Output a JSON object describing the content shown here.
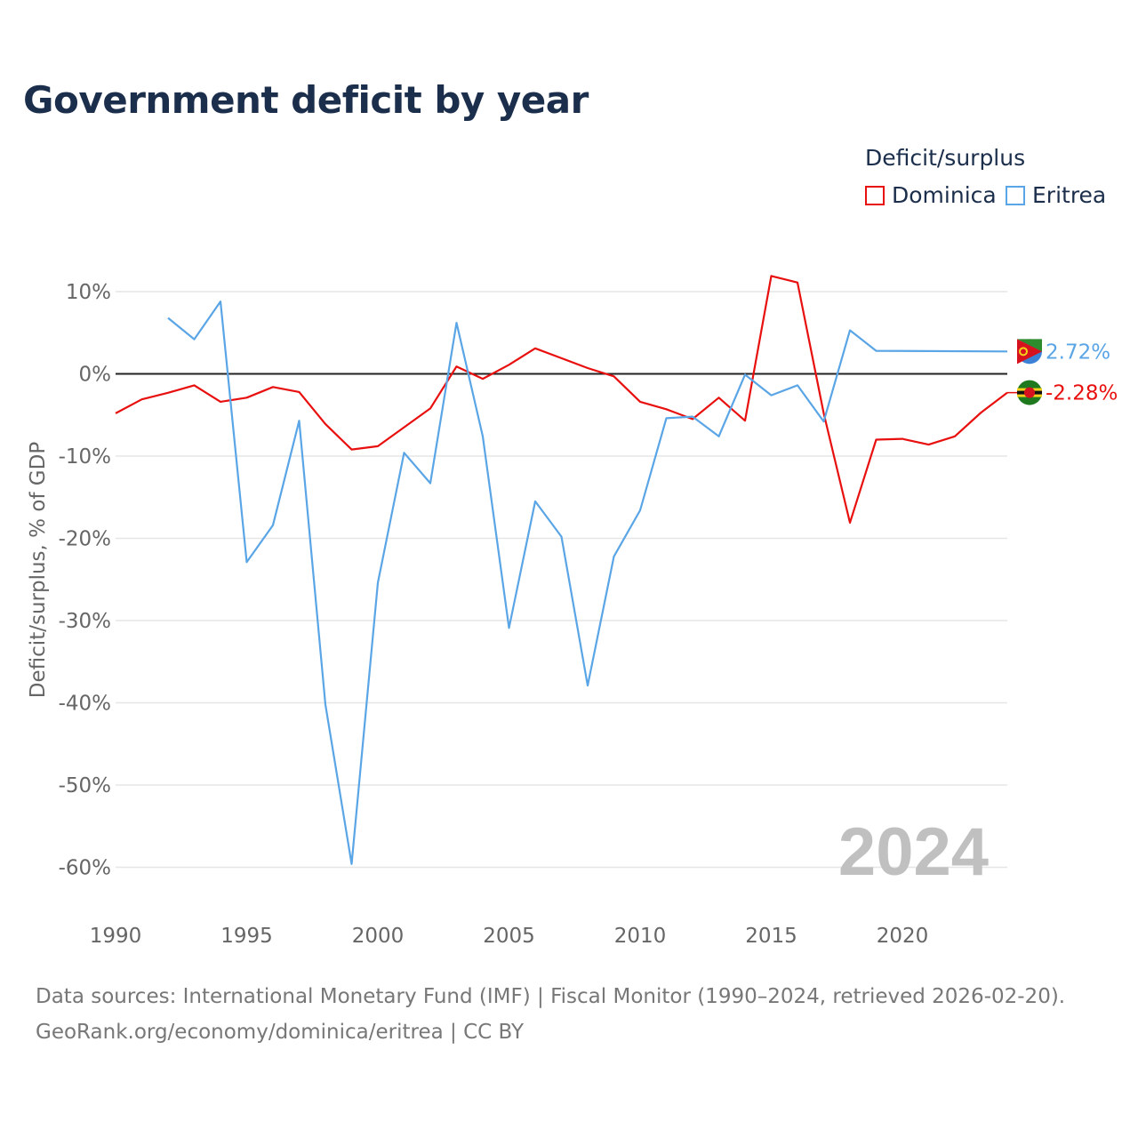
{
  "title": "Government deficit by year",
  "legend": {
    "title": "Deficit/surplus",
    "items": [
      {
        "name": "Dominica",
        "color": "#e8100f"
      },
      {
        "name": "Eritrea",
        "color": "#5aa5e6"
      }
    ]
  },
  "year_watermark": "2024",
  "sources": {
    "line1": "Data sources: International Monetary Fund (IMF) | Fiscal Monitor (1990–2024, retrieved 2026-02-20).",
    "line2": "GeoRank.org/economy/dominica/eritrea | CC BY"
  },
  "chart_data": {
    "type": "line",
    "title": "Government deficit by year",
    "xlabel": "",
    "ylabel": "Deficit/surplus, % of GDP",
    "xlim": [
      1990,
      2024
    ],
    "ylim": [
      -65,
      13
    ],
    "x_ticks": [
      1990,
      1995,
      2000,
      2005,
      2010,
      2015,
      2020
    ],
    "y_ticks": [
      10,
      0,
      -10,
      -20,
      -30,
      -40,
      -50,
      -60
    ],
    "y_tick_labels": [
      "10%",
      "0%",
      "-10%",
      "-20%",
      "-30%",
      "-40%",
      "-50%",
      "-60%"
    ],
    "zero_line": true,
    "series": [
      {
        "name": "Dominica",
        "color": "#e8100f",
        "end_label": "-2.28%",
        "points": [
          [
            1990,
            -4.8
          ],
          [
            1991,
            -3.1
          ],
          [
            1992,
            -2.3
          ],
          [
            1993,
            -1.4
          ],
          [
            1994,
            -3.4
          ],
          [
            1995,
            -2.9
          ],
          [
            1996,
            -1.6
          ],
          [
            1997,
            -2.2
          ],
          [
            1998,
            -6.1
          ],
          [
            1999,
            -9.2
          ],
          [
            2000,
            -8.8
          ],
          [
            2001,
            -6.5
          ],
          [
            2002,
            -4.2
          ],
          [
            2003,
            0.9
          ],
          [
            2004,
            -0.6
          ],
          [
            2005,
            1.1
          ],
          [
            2006,
            3.1
          ],
          [
            2007,
            1.9
          ],
          [
            2008,
            0.7
          ],
          [
            2009,
            -0.3
          ],
          [
            2010,
            -3.4
          ],
          [
            2011,
            -4.3
          ],
          [
            2012,
            -5.5
          ],
          [
            2013,
            -2.9
          ],
          [
            2014,
            -5.7
          ],
          [
            2015,
            11.9
          ],
          [
            2016,
            11.1
          ],
          [
            2017,
            -4.8
          ],
          [
            2018,
            -18.1
          ],
          [
            2019,
            -8.0
          ],
          [
            2020,
            -7.9
          ],
          [
            2021,
            -8.6
          ],
          [
            2022,
            -7.6
          ],
          [
            2023,
            -4.7
          ],
          [
            2024,
            -2.28
          ]
        ]
      },
      {
        "name": "Eritrea",
        "color": "#5aa5e6",
        "end_label": "2.72%",
        "points": [
          [
            1992,
            6.8
          ],
          [
            1993,
            4.2
          ],
          [
            1994,
            8.8
          ],
          [
            1995,
            -22.9
          ],
          [
            1996,
            -18.4
          ],
          [
            1997,
            -5.7
          ],
          [
            1998,
            -40.2
          ],
          [
            1999,
            -59.6
          ],
          [
            2000,
            -25.4
          ],
          [
            2001,
            -9.6
          ],
          [
            2002,
            -13.3
          ],
          [
            2003,
            6.2
          ],
          [
            2004,
            -7.6
          ],
          [
            2005,
            -30.9
          ],
          [
            2006,
            -15.5
          ],
          [
            2007,
            -19.8
          ],
          [
            2008,
            -37.9
          ],
          [
            2009,
            -22.2
          ],
          [
            2010,
            -16.6
          ],
          [
            2011,
            -5.4
          ],
          [
            2012,
            -5.2
          ],
          [
            2013,
            -7.6
          ],
          [
            2014,
            -0.1
          ],
          [
            2015,
            -2.6
          ],
          [
            2016,
            -1.4
          ],
          [
            2017,
            -5.8
          ],
          [
            2018,
            5.3
          ],
          [
            2019,
            2.8
          ],
          [
            2024,
            2.72
          ]
        ]
      }
    ]
  }
}
